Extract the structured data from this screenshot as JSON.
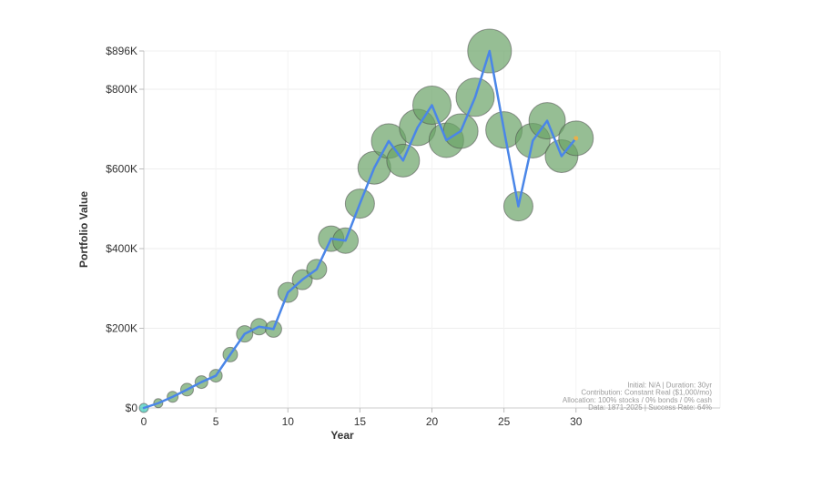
{
  "chart_data": {
    "type": "line",
    "title": "",
    "xlabel": "Year",
    "ylabel": "Portfolio Value",
    "xlim": [
      0,
      40
    ],
    "ylim": [
      0,
      896000
    ],
    "x_ticks": [
      0,
      5,
      10,
      15,
      20,
      25,
      30
    ],
    "x_tick_labels": [
      "0",
      "5",
      "10",
      "15",
      "20",
      "25",
      "30"
    ],
    "y_ticks": [
      0,
      200000,
      400000,
      600000,
      800000,
      896000
    ],
    "y_tick_labels": [
      "$0",
      "$200K",
      "$400K",
      "$600K",
      "$800K",
      "$896K"
    ],
    "grid": true,
    "legend": "none",
    "series": [
      {
        "type": "line",
        "x": [
          0,
          1,
          2,
          3,
          4,
          5,
          6,
          7,
          8,
          9,
          10,
          11,
          12,
          13,
          14,
          15,
          16,
          17,
          18,
          19,
          20,
          21,
          22,
          23,
          24,
          25,
          26,
          27,
          28,
          29,
          30
        ],
        "values": [
          0,
          12000,
          28000,
          46000,
          65000,
          81000,
          134000,
          186000,
          204000,
          198000,
          290000,
          322000,
          348000,
          425000,
          420000,
          513000,
          603000,
          670000,
          621000,
          704000,
          760000,
          672000,
          695000,
          780000,
          896000,
          698000,
          506000,
          671000,
          721000,
          632000,
          677000
        ]
      },
      {
        "type": "bubble",
        "x": [
          0,
          1,
          2,
          3,
          4,
          5,
          6,
          7,
          8,
          9,
          10,
          11,
          12,
          13,
          14,
          15,
          16,
          17,
          18,
          19,
          20,
          21,
          22,
          23,
          24,
          25,
          26,
          27,
          28,
          29,
          30
        ],
        "values": [
          0,
          12000,
          28000,
          46000,
          65000,
          81000,
          134000,
          186000,
          204000,
          198000,
          290000,
          322000,
          348000,
          425000,
          420000,
          513000,
          603000,
          670000,
          621000,
          704000,
          760000,
          672000,
          695000,
          780000,
          896000,
          698000,
          506000,
          671000,
          721000,
          632000,
          677000
        ],
        "sizes": [
          5,
          5,
          6,
          7,
          7,
          7,
          8,
          9,
          9,
          9,
          11,
          11,
          11,
          14,
          14,
          16,
          18,
          19,
          18,
          20,
          21,
          19,
          19,
          21,
          24,
          20,
          16,
          19,
          20,
          18,
          19
        ]
      }
    ],
    "colors": {
      "line": "#4a86e8",
      "bubble_fill": "#6aa367",
      "bubble_stroke": "#4a4a4a",
      "first_point": "#5fd3c4",
      "last_point": "#e8b04b"
    },
    "annotation_lines": [
      "Initial: N/A | Duration: 30yr",
      "Contribution: Constant Real ($1,000/mo)",
      "Allocation: 100% stocks / 0% bonds / 0% cash",
      "Data: 1871-2025 | Success Rate: 64%"
    ]
  }
}
